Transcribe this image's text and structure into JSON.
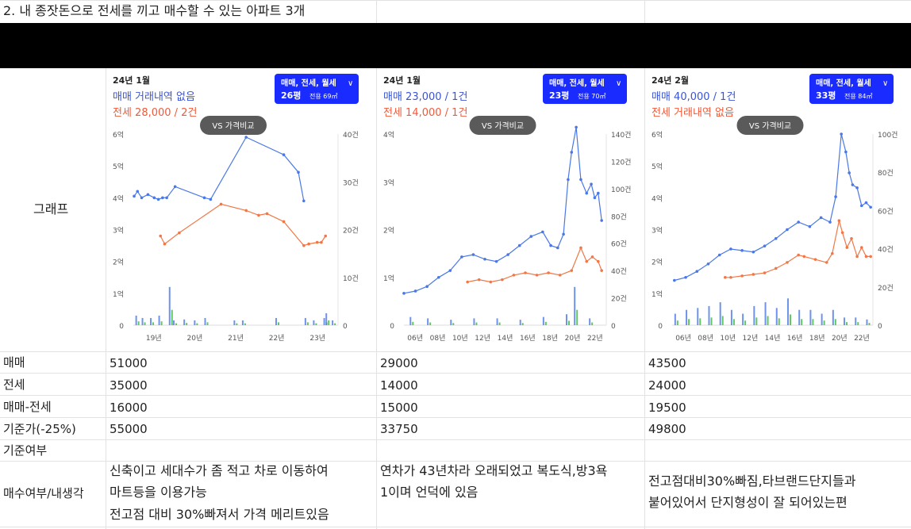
{
  "heading": "2. 내 종잣돈으로 전세를 끼고 매수할 수 있는 아파트 3개",
  "rows": [
    {
      "label": "그래프"
    },
    {
      "label": "매매",
      "values": [
        "51000",
        "29000",
        "43500"
      ]
    },
    {
      "label": "전세",
      "values": [
        "35000",
        "14000",
        "24000"
      ]
    },
    {
      "label": "매매-전세",
      "values": [
        "16000",
        "15000",
        "19500"
      ]
    },
    {
      "label": "기준가(-25%)",
      "values": [
        "55000",
        "33750",
        "49800"
      ]
    },
    {
      "label": "기준여부",
      "values": [
        "",
        "",
        ""
      ]
    },
    {
      "label": "매수여부/내생각",
      "values": [
        [
          "신축이고 세대수가 좀 적고 차로 이동하여",
          "마트등을 이용가능",
          "전고점 대비 30%빠져서 가격 메리트있음"
        ],
        [
          "연차가 43년차라 오래되었고 복도식,방3욕",
          "1이며 언덕에 있음"
        ],
        [
          "전고점대비30%빠짐,타브랜드단지들과",
          "붙어있어서 단지형성이 잘 되어있는편"
        ]
      ]
    }
  ],
  "colors": {
    "sale": "#4a78e6",
    "jeonse": "#f07848",
    "wolse": "#3cb83c",
    "pill_bg": "#5a5a5a",
    "btn_bg": "#1a2bff",
    "sale_text": "#3a54d8",
    "jeonse_text": "#f05a3a"
  },
  "charts": [
    {
      "date": "24년 1월",
      "sale_text": "매매 거래내역 없음",
      "jeonse_text": "전세 28,000 / 2건",
      "btn_types": "매매, 전세, 월세",
      "btn_chevron": "∨",
      "btn_size": "26평",
      "btn_area": "전용 69㎡",
      "pill": "VS 가격비교",
      "chart_data": {
        "type": "line",
        "x_ticks": [
          "19년",
          "20년",
          "21년",
          "22년",
          "23년"
        ],
        "y_ticks": [
          "0",
          "1억",
          "2억",
          "3억",
          "4억",
          "5억",
          "6억"
        ],
        "y2_ticks": [
          "0",
          "10건",
          "20건",
          "30건",
          "40건"
        ],
        "ylim": [
          0,
          6
        ],
        "y2lim": [
          0,
          40
        ],
        "xlim": [
          2018.7,
          2023.6
        ],
        "series": [
          {
            "role": "sale",
            "x": [
              2018.72,
              2018.8,
              2018.9,
              2019.05,
              2019.2,
              2019.3,
              2019.4,
              2019.5,
              2019.7,
              2020.4,
              2020.55,
              2021.4,
              2022.3,
              2022.65,
              2022.78
            ],
            "y": [
              4.05,
              4.2,
              4.0,
              4.1,
              4.0,
              3.95,
              4.0,
              4.0,
              4.35,
              4.0,
              3.95,
              5.9,
              5.35,
              4.8,
              3.9
            ]
          },
          {
            "role": "jeonse",
            "x": [
              2019.35,
              2019.45,
              2019.8,
              2020.8,
              2021.4,
              2021.7,
              2021.9,
              2022.3,
              2022.78,
              2022.9,
              2023.1,
              2023.2,
              2023.3
            ],
            "y": [
              2.8,
              2.55,
              2.9,
              3.8,
              3.6,
              3.45,
              3.5,
              3.25,
              2.5,
              2.55,
              2.6,
              2.6,
              2.8
            ]
          },
          {
            "role": "volume",
            "x": [
              2018.75,
              2018.9,
              2019.1,
              2019.3,
              2019.55,
              2019.65,
              2019.9,
              2020.15,
              2020.4,
              2021.1,
              2021.3,
              2022.1,
              2022.8,
              2023.0,
              2023.25,
              2023.3,
              2023.45
            ],
            "y": [
              2,
              1.5,
              1.5,
              2,
              8,
              1,
              1.2,
              1,
              1.5,
              1,
              1,
              1.5,
              1.5,
              1,
              1.5,
              2.5,
              1
            ]
          }
        ]
      }
    },
    {
      "date": "24년 1월",
      "sale_text": "매매 23,000 / 1건",
      "jeonse_text": "전세 14,000 / 1건",
      "btn_types": "매매, 전세, 월세",
      "btn_chevron": "∨",
      "btn_size": "23평",
      "btn_area": "전용 70㎡",
      "pill": "VS 가격비교",
      "chart_data": {
        "type": "line",
        "x_ticks": [
          "06년",
          "08년",
          "10년",
          "12년",
          "14년",
          "16년",
          "18년",
          "20년",
          "22년"
        ],
        "y_ticks": [
          "0",
          "1억",
          "2억",
          "3억",
          "4억"
        ],
        "y2_ticks": [
          "0",
          "20건",
          "40건",
          "60건",
          "80건",
          "100건",
          "120건",
          "140건"
        ],
        "ylim": [
          0,
          4.2
        ],
        "y2lim": [
          0,
          140
        ],
        "xlim": [
          2006,
          2023.5
        ],
        "series": [
          {
            "role": "sale",
            "x": [
              2006,
              2007,
              2008,
              2009,
              2010,
              2011,
              2012,
              2013,
              2014,
              2015,
              2016,
              2017,
              2018,
              2018.7,
              2019.3,
              2019.8,
              2020.2,
              2020.5,
              2020.9,
              2021.3,
              2021.8,
              2022.2,
              2022.5,
              2022.8,
              2023.1
            ],
            "y": [
              0.7,
              0.75,
              0.85,
              1.05,
              1.2,
              1.5,
              1.55,
              1.45,
              1.4,
              1.55,
              1.75,
              1.95,
              2.05,
              1.75,
              1.7,
              2.0,
              3.2,
              3.8,
              4.35,
              3.2,
              2.9,
              3.1,
              2.8,
              2.9,
              2.3
            ]
          },
          {
            "role": "jeonse",
            "x": [
              2011.5,
              2012.5,
              2013.5,
              2014.5,
              2015.5,
              2016.5,
              2017.5,
              2018.5,
              2019.5,
              2020.5,
              2021.3,
              2021.8,
              2022.3,
              2022.8,
              2023.1
            ],
            "y": [
              0.95,
              1.0,
              0.95,
              1.0,
              1.1,
              1.15,
              1.1,
              1.15,
              1.1,
              1.2,
              1.7,
              1.4,
              1.5,
              1.4,
              1.2
            ]
          },
          {
            "role": "volume",
            "x": [
              2006.5,
              2008,
              2010,
              2012,
              2014,
              2016,
              2018,
              2020,
              2020.7,
              2022
            ],
            "y": [
              6,
              5,
              4,
              5,
              5,
              4,
              6,
              8,
              28,
              5
            ]
          }
        ]
      }
    },
    {
      "date": "24년 2월",
      "sale_text": "매매 40,000 / 1건",
      "jeonse_text": "전세 거래내역 없음",
      "btn_types": "매매, 전세, 월세",
      "btn_chevron": "∨",
      "btn_size": "33평",
      "btn_area": "전용 84㎡",
      "pill": "VS 가격비교",
      "chart_data": {
        "type": "line",
        "x_ticks": [
          "06년",
          "08년",
          "10년",
          "12년",
          "14년",
          "16년",
          "18년",
          "20년",
          "22년"
        ],
        "y_ticks": [
          "0",
          "1억",
          "2억",
          "3억",
          "4억",
          "5억",
          "6억"
        ],
        "y2_ticks": [
          "0",
          "20건",
          "40건",
          "60건",
          "80건",
          "100건"
        ],
        "ylim": [
          0,
          6.4
        ],
        "y2lim": [
          0,
          100
        ],
        "xlim": [
          2005.8,
          2023.6
        ],
        "series": [
          {
            "role": "sale",
            "x": [
              2006,
              2007,
              2008,
              2009,
              2010,
              2011,
              2012,
              2013,
              2014,
              2015,
              2016,
              2017,
              2018,
              2019,
              2019.8,
              2020.3,
              2020.8,
              2021.2,
              2021.5,
              2021.8,
              2022.2,
              2022.6,
              2023,
              2023.4
            ],
            "y": [
              1.5,
              1.6,
              1.8,
              2.05,
              2.35,
              2.55,
              2.5,
              2.45,
              2.65,
              2.9,
              3.2,
              3.45,
              3.3,
              3.6,
              3.45,
              4.3,
              6.4,
              5.8,
              5.1,
              4.7,
              4.6,
              4.0,
              4.1,
              3.95
            ]
          },
          {
            "role": "jeonse",
            "x": [
              2010.5,
              2011,
              2012,
              2013,
              2014,
              2015,
              2016,
              2017,
              2017.5,
              2018.5,
              2019.5,
              2020,
              2020.6,
              2020.9,
              2021.3,
              2021.7,
              2022.2,
              2022.6,
              2023,
              2023.4
            ],
            "y": [
              1.6,
              1.6,
              1.65,
              1.7,
              1.75,
              1.9,
              2.1,
              2.35,
              2.3,
              2.2,
              2.1,
              2.4,
              3.5,
              3.1,
              2.6,
              2.9,
              2.3,
              2.6,
              2.3,
              2.3
            ]
          },
          {
            "role": "volume",
            "x": [
              2006,
              2007,
              2008,
              2009,
              2010,
              2011,
              2012,
              2013,
              2014,
              2015,
              2016,
              2017,
              2018,
              2019,
              2020,
              2021,
              2022,
              2023
            ],
            "y": [
              6,
              8,
              9,
              10,
              12,
              8,
              6,
              10,
              12,
              9,
              14,
              8,
              8,
              6,
              8,
              4,
              4,
              3
            ]
          }
        ]
      }
    }
  ]
}
